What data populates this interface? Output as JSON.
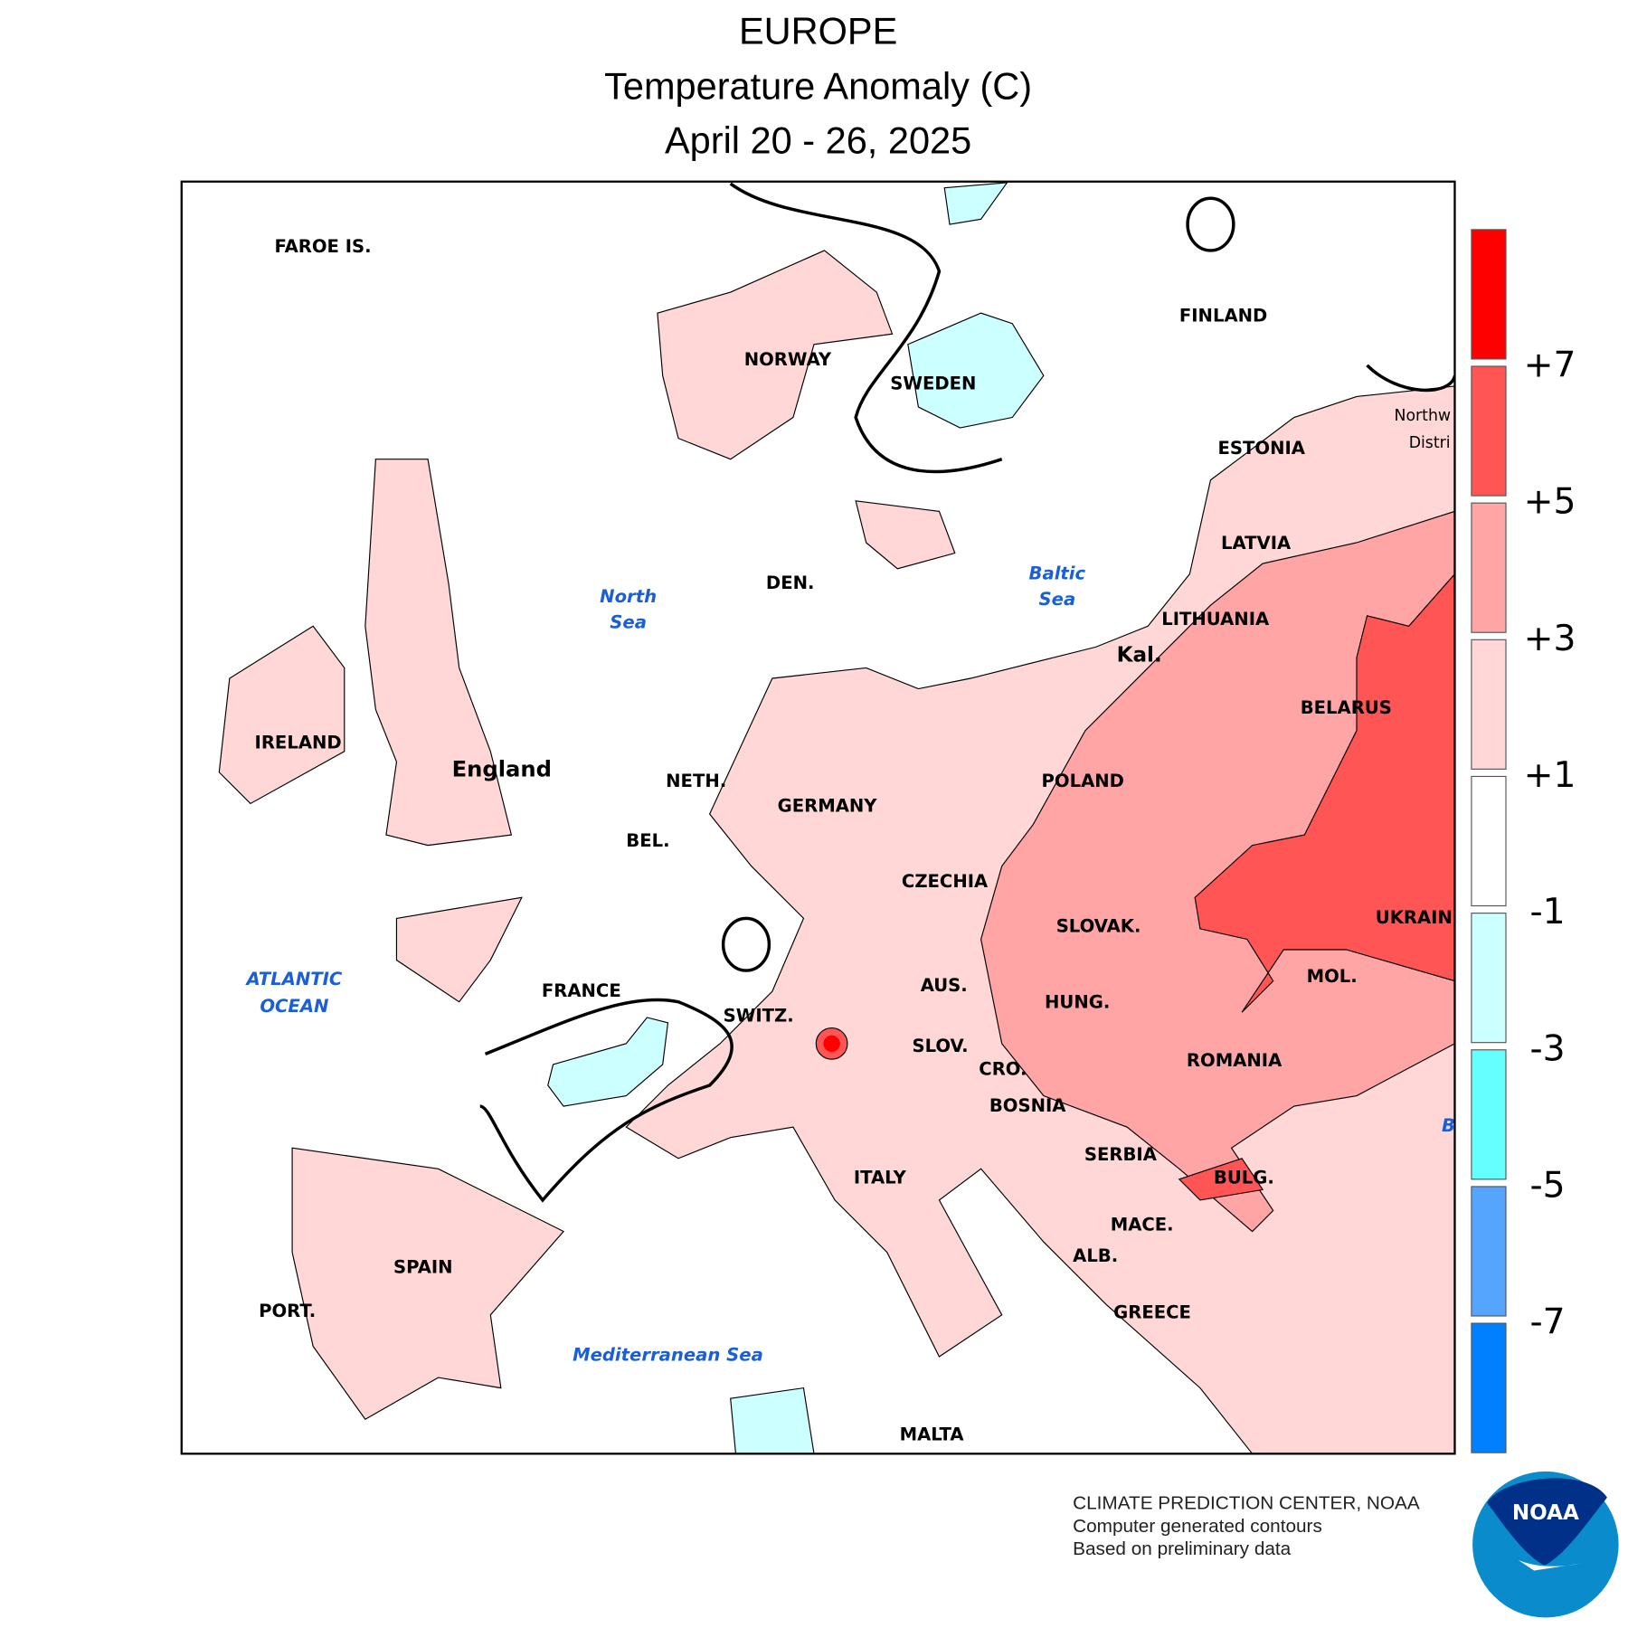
{
  "header": {
    "region": "EUROPE",
    "title": "Temperature Anomaly (C)",
    "period": "April 20 - 26, 2025"
  },
  "legend": {
    "labels": [
      "+7",
      "+5",
      "+3",
      "+1",
      "-1",
      "-3",
      "-5",
      "-7"
    ],
    "colors": [
      "#ff0000",
      "#ff5555",
      "#ffa5a5",
      "#ffd7d7",
      "#ffffff",
      "#ccffff",
      "#66ffff",
      "#55a5ff",
      "#0080ff"
    ]
  },
  "map": {
    "countries": {
      "faroe": "FAROE IS.",
      "norway": "NORWAY",
      "sweden": "SWEDEN",
      "finland": "FINLAND",
      "estonia": "ESTONIA",
      "latvia": "LATVIA",
      "lithuania": "LITHUANIA",
      "kal": "Kal.",
      "belarus": "BELARUS",
      "poland": "POLAND",
      "germany": "GERMANY",
      "den": "DEN.",
      "neth": "NETH.",
      "bel": "BEL.",
      "england": "England",
      "ireland": "IRELAND",
      "france": "FRANCE",
      "switz": "SWITZ.",
      "aus": "AUS.",
      "czechia": "CZECHIA",
      "slovak": "SLOVAK.",
      "hung": "HUNG.",
      "slov": "SLOV.",
      "cro": "CRO.",
      "bosnia": "BOSNIA",
      "serbia": "SERBIA",
      "romania": "ROMANIA",
      "mol": "MOL.",
      "ukraine": "UKRAINE",
      "bulg": "BULG.",
      "mace": "MACE.",
      "alb": "ALB.",
      "greece": "GREECE",
      "italy": "ITALY",
      "spain": "SPAIN",
      "port": "PORT.",
      "malta": "MALTA",
      "nw_district_1": "Northw",
      "nw_district_2": "Distri"
    },
    "seas": {
      "north_1": "North",
      "north_2": "Sea",
      "baltic_1": "Baltic",
      "baltic_2": "Sea",
      "atlantic_1": "ATLANTIC",
      "atlantic_2": "OCEAN",
      "med": "Mediterranean Sea",
      "black": "B"
    }
  },
  "footer": {
    "line1": "CLIMATE PREDICTION CENTER, NOAA",
    "line2": "Computer generated contours",
    "line3": "Based on preliminary data",
    "logo_text": "NOAA"
  }
}
